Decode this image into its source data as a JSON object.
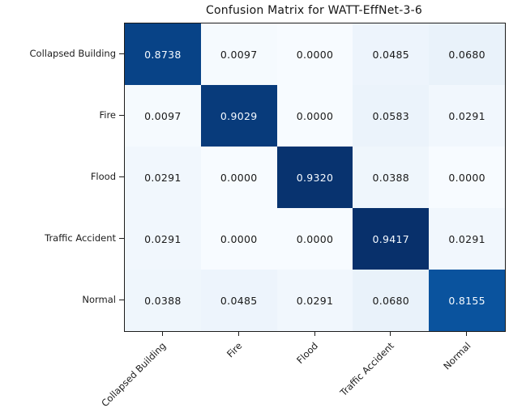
{
  "chart_data": {
    "type": "heatmap",
    "title": "Confusion Matrix for WATT-EffNet-3-6",
    "categories": [
      "Collapsed Building",
      "Fire",
      "Flood",
      "Traffic Accident",
      "Normal"
    ],
    "x_categories": [
      "Collapsed Building",
      "Fire",
      "Flood",
      "Traffic Accident",
      "Normal"
    ],
    "matrix": [
      [
        0.8738,
        0.0097,
        0.0,
        0.0485,
        0.068
      ],
      [
        0.0097,
        0.9029,
        0.0,
        0.0583,
        0.0291
      ],
      [
        0.0291,
        0.0,
        0.932,
        0.0388,
        0.0
      ],
      [
        0.0291,
        0.0,
        0.0,
        0.9417,
        0.0291
      ],
      [
        0.0388,
        0.0485,
        0.0291,
        0.068,
        0.8155
      ]
    ],
    "value_decimals": 4,
    "colormap": "Blues",
    "colormap_stops": [
      "#f7fbff",
      "#deebf7",
      "#c6dbef",
      "#9ecae1",
      "#6baed6",
      "#4292c6",
      "#2171b5",
      "#08519c",
      "#08306b"
    ],
    "vmin": 0.0,
    "vmax": 0.9417,
    "cell_text_color_on_dark": "#f5faff",
    "cell_text_color_on_light": "#1a1a1a",
    "axis_color": "#1c1c1c",
    "x_tick_rotation_deg": 45,
    "grid": false,
    "legend": "none",
    "colorbar": false
  }
}
